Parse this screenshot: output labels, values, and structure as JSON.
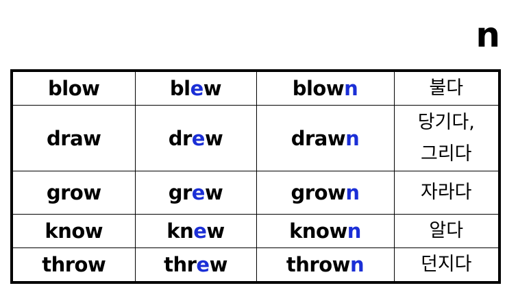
{
  "corner_letter": "n",
  "rows": [
    {
      "base": "blow",
      "past": {
        "pre": "bl",
        "mid": "e",
        "post": "w"
      },
      "pp": {
        "pre": "blow",
        "mid": "n"
      },
      "meaning": [
        "불다"
      ]
    },
    {
      "base": "draw",
      "past": {
        "pre": "dr",
        "mid": "e",
        "post": "w"
      },
      "pp": {
        "pre": "draw",
        "mid": "n"
      },
      "meaning": [
        "당기다,",
        "그리다"
      ]
    },
    {
      "base": "grow",
      "past": {
        "pre": "gr",
        "mid": "e",
        "post": "w"
      },
      "pp": {
        "pre": "grow",
        "mid": "n"
      },
      "meaning": [
        "자라다"
      ]
    },
    {
      "base": "know",
      "past": {
        "pre": "kn",
        "mid": "e",
        "post": "w"
      },
      "pp": {
        "pre": "know",
        "mid": "n"
      },
      "meaning": [
        "알다"
      ]
    },
    {
      "base": "throw",
      "past": {
        "pre": "thr",
        "mid": "e",
        "post": "w"
      },
      "pp": {
        "pre": "throw",
        "mid": "n"
      },
      "meaning": [
        "던지다"
      ]
    }
  ],
  "colors": {
    "highlight": "#1b2fd6",
    "text": "#000000",
    "border": "#000000"
  }
}
